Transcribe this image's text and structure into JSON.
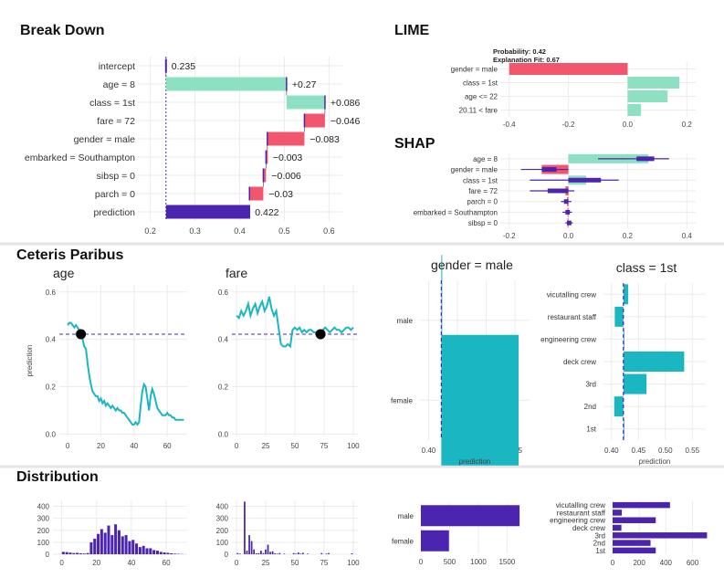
{
  "colors": {
    "positive": "#8ee0c2",
    "negative": "#f2566e",
    "prediction": "#4b25b0",
    "profile": "#1ab7c2",
    "dash": "#4b25b0",
    "separator": "#e4e4e4"
  },
  "sections": {
    "break_down": "Break Down",
    "lime": "LIME",
    "shap": "SHAP",
    "ceteris_paribus": "Ceteris Paribus",
    "distribution": "Distribution"
  },
  "chart_data": [
    {
      "id": "break_down",
      "type": "waterfall",
      "title": "Break Down",
      "xlim": [
        0.17,
        0.63
      ],
      "xticks": [
        0.2,
        0.3,
        0.4,
        0.5,
        0.6
      ],
      "baseline": 0.235,
      "rows": [
        {
          "label": "intercept",
          "start": 0.235,
          "end": 0.235,
          "text": "0.235",
          "kind": "intercept"
        },
        {
          "label": "age = 8",
          "start": 0.235,
          "end": 0.505,
          "text": "+0.27",
          "kind": "pos"
        },
        {
          "label": "class = 1st",
          "start": 0.505,
          "end": 0.591,
          "text": "+0.086",
          "kind": "pos"
        },
        {
          "label": "fare = 72",
          "start": 0.591,
          "end": 0.545,
          "text": "−0.046",
          "kind": "neg"
        },
        {
          "label": "gender = male",
          "start": 0.545,
          "end": 0.462,
          "text": "−0.083",
          "kind": "neg"
        },
        {
          "label": "embarked = Southampton",
          "start": 0.462,
          "end": 0.459,
          "text": "−0.003",
          "kind": "neg"
        },
        {
          "label": "sibsp = 0",
          "start": 0.459,
          "end": 0.453,
          "text": "−0.006",
          "kind": "neg"
        },
        {
          "label": "parch = 0",
          "start": 0.453,
          "end": 0.422,
          "text": "−0.03",
          "kind": "neg"
        },
        {
          "label": "prediction",
          "start": 0.235,
          "end": 0.422,
          "text": "0.422",
          "kind": "pred"
        }
      ]
    },
    {
      "id": "lime",
      "type": "bar",
      "title": "LIME",
      "header_lines": [
        "Probability: 0.42",
        "Explanation Fit: 0.67"
      ],
      "xlim": [
        -0.43,
        0.23
      ],
      "xticks": [
        -0.4,
        -0.2,
        0.0,
        0.2
      ],
      "xtick_labels": [
        "-0.4",
        "-0.2",
        "0.0",
        "0.2"
      ],
      "rows": [
        {
          "label": "gender = male",
          "value": -0.4
        },
        {
          "label": "class = 1st",
          "value": 0.175
        },
        {
          "label": "age <= 22",
          "value": 0.135
        },
        {
          "label": "20.11 < fare",
          "value": 0.045
        }
      ]
    },
    {
      "id": "shap",
      "type": "bar",
      "title": "SHAP",
      "xlim": [
        -0.23,
        0.43
      ],
      "xticks": [
        -0.2,
        0.0,
        0.2,
        0.4
      ],
      "xtick_labels": [
        "-0.2",
        "0.0",
        "0.2",
        "0.4"
      ],
      "rows": [
        {
          "label": "age = 8",
          "value": 0.27,
          "box": [
            0.23,
            0.29
          ],
          "whisker": [
            0.1,
            0.34
          ]
        },
        {
          "label": "gender = male",
          "value": -0.09,
          "box": [
            -0.09,
            -0.04
          ],
          "whisker": [
            -0.16,
            0.0
          ]
        },
        {
          "label": "class = 1st",
          "value": 0.06,
          "box": [
            0.0,
            0.11
          ],
          "whisker": [
            -0.13,
            0.17
          ]
        },
        {
          "label": "fare = 72",
          "value": -0.01,
          "box": [
            -0.07,
            0.0
          ],
          "whisker": [
            -0.13,
            0.02
          ]
        },
        {
          "label": "parch = 0",
          "value": -0.005,
          "box": [
            -0.015,
            0.0
          ],
          "whisker": [
            -0.025,
            0.01
          ]
        },
        {
          "label": "embarked = Southampton",
          "value": -0.003,
          "box": [
            -0.01,
            0.005
          ],
          "whisker": [
            -0.02,
            0.012
          ]
        },
        {
          "label": "sibsp = 0",
          "value": -0.003,
          "box": [
            -0.005,
            0.01
          ],
          "whisker": [
            -0.01,
            0.015
          ]
        }
      ]
    },
    {
      "id": "cp_age",
      "type": "line",
      "title": "age",
      "ylabel": "prediction",
      "xlim": [
        -5,
        72
      ],
      "ylim": [
        -0.01,
        0.63
      ],
      "xticks": [
        0,
        20,
        40,
        60
      ],
      "yticks": [
        0.0,
        0.2,
        0.4,
        0.6
      ],
      "ytick_labels": [
        "0.0",
        "0.2",
        "0.4",
        "0.6"
      ],
      "observation": {
        "x": 8,
        "y": 0.422
      },
      "x": [
        0,
        1,
        2,
        3,
        4,
        5,
        6,
        7,
        8,
        9,
        10,
        11,
        12,
        13,
        14,
        15,
        16,
        17,
        18,
        19,
        20,
        21,
        22,
        23,
        24,
        25,
        26,
        27,
        28,
        29,
        30,
        31,
        32,
        33,
        34,
        35,
        36,
        37,
        38,
        39,
        40,
        41,
        42,
        43,
        44,
        45,
        46,
        47,
        48,
        49,
        50,
        51,
        52,
        53,
        54,
        55,
        56,
        57,
        58,
        59,
        60,
        61,
        62,
        63,
        64,
        65,
        66,
        67,
        68,
        69,
        70
      ],
      "y": [
        0.46,
        0.47,
        0.47,
        0.46,
        0.45,
        0.46,
        0.45,
        0.44,
        0.422,
        0.4,
        0.37,
        0.36,
        0.3,
        0.25,
        0.21,
        0.18,
        0.17,
        0.16,
        0.16,
        0.14,
        0.15,
        0.13,
        0.14,
        0.12,
        0.13,
        0.12,
        0.11,
        0.12,
        0.11,
        0.1,
        0.11,
        0.1,
        0.1,
        0.09,
        0.09,
        0.08,
        0.07,
        0.06,
        0.05,
        0.04,
        0.04,
        0.05,
        0.04,
        0.05,
        0.12,
        0.18,
        0.21,
        0.2,
        0.15,
        0.1,
        0.16,
        0.19,
        0.17,
        0.14,
        0.11,
        0.1,
        0.09,
        0.08,
        0.08,
        0.08,
        0.09,
        0.08,
        0.08,
        0.07,
        0.07,
        0.06,
        0.06,
        0.06,
        0.06,
        0.06,
        0.06
      ]
    },
    {
      "id": "cp_fare",
      "type": "line",
      "title": "fare",
      "xlim": [
        -4,
        104
      ],
      "ylim": [
        -0.01,
        0.63
      ],
      "xticks": [
        0,
        25,
        50,
        75,
        100
      ],
      "yticks": [
        0.0,
        0.2,
        0.4,
        0.6
      ],
      "ytick_labels": [
        "0.0",
        "0.2",
        "0.4",
        "0.6"
      ],
      "observation": {
        "x": 72,
        "y": 0.422
      },
      "x": [
        0,
        2,
        4,
        6,
        8,
        10,
        12,
        14,
        16,
        18,
        20,
        22,
        24,
        26,
        28,
        30,
        32,
        34,
        36,
        38,
        40,
        42,
        44,
        46,
        48,
        50,
        52,
        54,
        56,
        58,
        60,
        62,
        64,
        66,
        68,
        70,
        72,
        74,
        76,
        78,
        80,
        82,
        84,
        86,
        88,
        90,
        92,
        94,
        96,
        98,
        100
      ],
      "y": [
        0.5,
        0.49,
        0.52,
        0.5,
        0.52,
        0.55,
        0.5,
        0.53,
        0.55,
        0.51,
        0.54,
        0.56,
        0.52,
        0.54,
        0.58,
        0.53,
        0.5,
        0.52,
        0.45,
        0.38,
        0.37,
        0.37,
        0.38,
        0.37,
        0.44,
        0.45,
        0.44,
        0.45,
        0.43,
        0.44,
        0.43,
        0.44,
        0.44,
        0.43,
        0.43,
        0.43,
        0.422,
        0.44,
        0.45,
        0.44,
        0.43,
        0.44,
        0.45,
        0.44,
        0.44,
        0.43,
        0.44,
        0.45,
        0.45,
        0.44,
        0.45
      ]
    },
    {
      "id": "cp_gender",
      "type": "bar",
      "title": "gender = male",
      "xlabel": "prediction",
      "xlim": [
        0.385,
        0.575
      ],
      "xticks": [
        0.4,
        0.45,
        0.5,
        0.55
      ],
      "xtick_labels": [
        "0.40",
        "0.45",
        "0.50",
        "0.55"
      ],
      "reference": 0.422,
      "categories": [
        "male",
        "female"
      ],
      "values": [
        0.422,
        0.556
      ]
    },
    {
      "id": "cp_class",
      "type": "bar",
      "title": "class = 1st",
      "xlabel": "prediction",
      "xlim": [
        0.385,
        0.575
      ],
      "xticks": [
        0.4,
        0.45,
        0.5,
        0.55
      ],
      "xtick_labels": [
        "0.40",
        "0.45",
        "0.50",
        "0.55"
      ],
      "reference": 0.422,
      "categories": [
        "vicutalling crew",
        "restaurant staff",
        "engineering crew",
        "deck crew",
        "3rd",
        "2nd",
        "1st"
      ],
      "values": [
        0.431,
        0.406,
        0.422,
        0.535,
        0.465,
        0.405,
        0.422
      ]
    },
    {
      "id": "dist_age",
      "type": "histogram",
      "xlim": [
        -5,
        72
      ],
      "ylim": [
        0,
        450
      ],
      "xticks": [
        0,
        20,
        40,
        60
      ],
      "yticks": [
        0,
        100,
        200,
        300,
        400
      ],
      "bin_width": 2,
      "bin_starts": [
        0,
        2,
        4,
        6,
        8,
        10,
        12,
        14,
        16,
        18,
        20,
        22,
        24,
        26,
        28,
        30,
        32,
        34,
        36,
        38,
        40,
        42,
        44,
        46,
        48,
        50,
        52,
        54,
        56,
        58,
        60,
        62,
        64,
        66,
        68
      ],
      "counts": [
        20,
        18,
        14,
        10,
        12,
        8,
        6,
        10,
        100,
        130,
        170,
        210,
        180,
        240,
        160,
        250,
        200,
        150,
        160,
        110,
        120,
        90,
        60,
        70,
        50,
        50,
        35,
        30,
        20,
        15,
        12,
        8,
        5,
        3,
        2
      ]
    },
    {
      "id": "dist_fare",
      "type": "histogram",
      "xlim": [
        -4,
        104
      ],
      "ylim": [
        0,
        450
      ],
      "xticks": [
        0,
        25,
        50,
        75,
        100
      ],
      "yticks": [
        0,
        100,
        200,
        300,
        400
      ],
      "bin_width": 2,
      "bin_starts": [
        0,
        2,
        4,
        6,
        8,
        10,
        12,
        14,
        16,
        18,
        20,
        22,
        24,
        26,
        28,
        30,
        32,
        34,
        36,
        38,
        40,
        42,
        44,
        46,
        48,
        50,
        52,
        54,
        56,
        58,
        60,
        62,
        64,
        66,
        68,
        70,
        72,
        74,
        76,
        78,
        80,
        82,
        84,
        86,
        88,
        90,
        92,
        94,
        96,
        98
      ],
      "counts": [
        10,
        5,
        0,
        440,
        30,
        160,
        110,
        40,
        8,
        10,
        30,
        10,
        40,
        80,
        20,
        25,
        8,
        5,
        10,
        0,
        5,
        0,
        0,
        0,
        10,
        5,
        15,
        5,
        12,
        0,
        5,
        0,
        0,
        0,
        0,
        0,
        10,
        0,
        5,
        10,
        0,
        0,
        0,
        0,
        0,
        0,
        0,
        0,
        0,
        8
      ]
    },
    {
      "id": "dist_gender",
      "type": "bar",
      "xlim": [
        0,
        1780
      ],
      "xticks": [
        0,
        500,
        1000,
        1500
      ],
      "categories": [
        "male",
        "female"
      ],
      "values": [
        1718,
        489
      ]
    },
    {
      "id": "dist_class",
      "type": "bar",
      "xlim": [
        0,
        720
      ],
      "xticks": [
        0,
        200,
        400,
        600
      ],
      "categories": [
        "vicutalling crew",
        "restaurant staff",
        "engineering crew",
        "deck crew",
        "3rd",
        "2nd",
        "1st"
      ],
      "values": [
        431,
        69,
        324,
        66,
        709,
        285,
        324
      ]
    }
  ]
}
